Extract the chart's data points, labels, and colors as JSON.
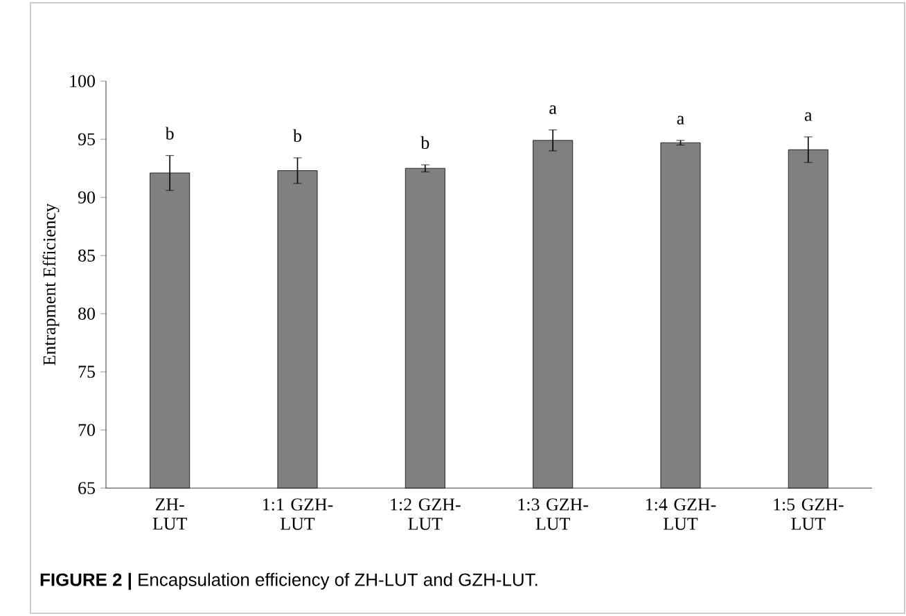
{
  "chart_data": {
    "type": "bar",
    "ylabel": "Entrapment Efficiency",
    "categories": [
      "ZH-LUT",
      "1:1 GZH-LUT",
      "1:2 GZH-LUT",
      "1:3 GZH-LUT",
      "1:4 GZH-LUT",
      "1:5 GZH-LUT"
    ],
    "values": [
      92.1,
      92.3,
      92.5,
      94.9,
      94.7,
      94.1
    ],
    "errors": [
      1.5,
      1.1,
      0.3,
      0.9,
      0.2,
      1.1
    ],
    "color": "#808080",
    "ylim": [
      65,
      100
    ],
    "yticks": [
      65,
      70,
      75,
      80,
      85,
      90,
      95,
      100
    ],
    "annotations": [
      "b",
      "b",
      "b",
      "a",
      "a",
      "a",
      "**FIGURE 2 |** Encapsulation efficiency of ZH-LUT and GZH-LUT."
    ]
  }
}
